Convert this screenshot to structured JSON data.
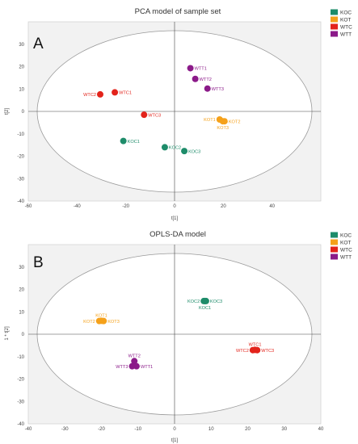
{
  "legend": [
    {
      "label": "KOC",
      "color": "#1E8C6A"
    },
    {
      "label": "KOT",
      "color": "#F5A11A"
    },
    {
      "label": "WTC",
      "color": "#E3231B"
    },
    {
      "label": "WTT",
      "color": "#8B1A89"
    }
  ],
  "chart_data": [
    {
      "type": "scatter",
      "panel": "A",
      "title": "PCA model of sample set",
      "xlabel": "t[1]",
      "ylabel": "t[2]",
      "xlim": [
        -60,
        60
      ],
      "ylim": [
        -40,
        40
      ],
      "xticks": [
        -60,
        -40,
        -20,
        0,
        20,
        40
      ],
      "yticks": [
        -40,
        -30,
        -20,
        -10,
        0,
        10,
        20,
        30
      ],
      "grid": false,
      "legend_position": "right",
      "series": [
        {
          "name": "KOC",
          "points": [
            {
              "label": "KOC1",
              "x": -21,
              "y": -13.2,
              "label_side": "right"
            },
            {
              "label": "KOC2",
              "x": -4,
              "y": -16,
              "label_side": "right"
            },
            {
              "label": "KOC3",
              "x": 4,
              "y": -17.7,
              "label_side": "right"
            }
          ]
        },
        {
          "name": "KOT",
          "points": [
            {
              "label": "KOT1",
              "x": 18.5,
              "y": -3.6,
              "label_side": "left"
            },
            {
              "label": "KOT2",
              "x": 20.5,
              "y": -4.4,
              "label_side": "right"
            },
            {
              "label": "KOT3",
              "x": 19.8,
              "y": -4.4,
              "label_side": "below"
            }
          ]
        },
        {
          "name": "WTC",
          "points": [
            {
              "label": "WTC1",
              "x": -24.5,
              "y": 8.5,
              "label_side": "right"
            },
            {
              "label": "WTC2",
              "x": -30.5,
              "y": 7.6,
              "label_side": "left"
            },
            {
              "label": "WTC3",
              "x": -12.5,
              "y": -1.5,
              "label_side": "right"
            }
          ]
        },
        {
          "name": "WTT",
          "points": [
            {
              "label": "WTT1",
              "x": 6.5,
              "y": 19.3,
              "label_side": "right"
            },
            {
              "label": "WTT2",
              "x": 8.5,
              "y": 14.5,
              "label_side": "right"
            },
            {
              "label": "WTT3",
              "x": 13.5,
              "y": 10.2,
              "label_side": "right"
            }
          ]
        }
      ]
    },
    {
      "type": "scatter",
      "panel": "B",
      "title": "OPLS-DA model",
      "xlabel": "t[1]",
      "ylabel": "1 * t[2]",
      "xlim": [
        -40,
        40
      ],
      "ylim": [
        -40,
        40
      ],
      "xticks": [
        -40,
        -30,
        -20,
        -10,
        0,
        10,
        20,
        30,
        40
      ],
      "yticks": [
        -40,
        -30,
        -20,
        -10,
        0,
        10,
        20,
        30
      ],
      "grid": false,
      "legend_position": "right",
      "series": [
        {
          "name": "KOC",
          "points": [
            {
              "label": "KOC2",
              "x": 8,
              "y": 14.8,
              "label_side": "left"
            },
            {
              "label": "KOC3",
              "x": 8.6,
              "y": 14.8,
              "label_side": "right"
            },
            {
              "label": "KOC1",
              "x": 8.3,
              "y": 14.8,
              "label_side": "below"
            }
          ]
        },
        {
          "name": "KOT",
          "points": [
            {
              "label": "KOT1",
              "x": -20,
              "y": 6,
              "label_side": "above"
            },
            {
              "label": "KOT2",
              "x": -20.6,
              "y": 5.9,
              "label_side": "left"
            },
            {
              "label": "KOT3",
              "x": -19.4,
              "y": 5.9,
              "label_side": "right"
            }
          ]
        },
        {
          "name": "WTC",
          "points": [
            {
              "label": "WTC1",
              "x": 22,
              "y": -7,
              "label_side": "above"
            },
            {
              "label": "WTC2",
              "x": 21.4,
              "y": -7.1,
              "label_side": "left"
            },
            {
              "label": "WTC3",
              "x": 22.6,
              "y": -7.1,
              "label_side": "right"
            }
          ]
        },
        {
          "name": "WTT",
          "points": [
            {
              "label": "WTT2",
              "x": -11,
              "y": -12,
              "label_side": "above"
            },
            {
              "label": "WTT3",
              "x": -11.6,
              "y": -14.3,
              "label_side": "left"
            },
            {
              "label": "WTT1",
              "x": -10.4,
              "y": -14.3,
              "label_side": "right"
            }
          ]
        }
      ]
    }
  ]
}
